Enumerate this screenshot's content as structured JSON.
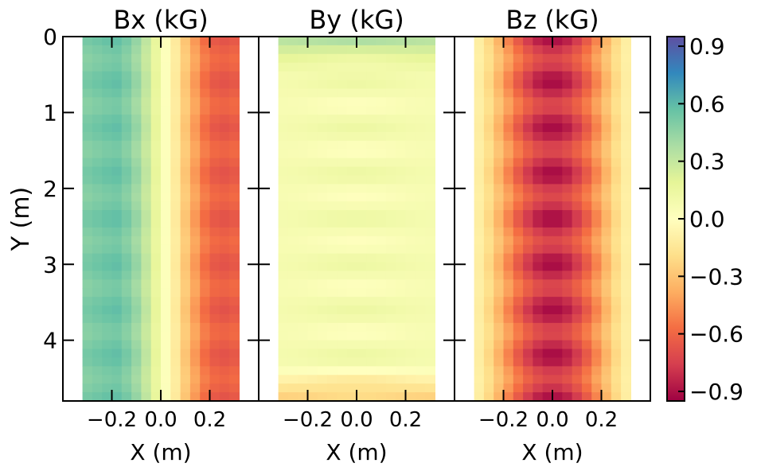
{
  "chart_data": {
    "type": "heatmap",
    "colormap": "Spectral",
    "colorbar": {
      "range": [
        -0.95,
        0.95
      ],
      "ticks": [
        0.9,
        0.6,
        0.3,
        0.0,
        -0.3,
        -0.6,
        -0.9
      ],
      "tick_labels": [
        "0.9",
        "0.6",
        "0.3",
        "0.0",
        "−0.3",
        "−0.6",
        "−0.9"
      ]
    },
    "ylabel": "Y (m)",
    "y_range": [
      0,
      4.8
    ],
    "y_ticks": [
      0,
      1,
      2,
      3,
      4
    ],
    "y_tick_labels": [
      "0",
      "1",
      "2",
      "3",
      "4"
    ],
    "y_inverted": true,
    "x_range": [
      -0.4,
      0.4
    ],
    "data_x_range": [
      -0.32,
      0.32
    ],
    "x_ticks": [
      -0.2,
      0.0,
      0.2
    ],
    "x_tick_labels": [
      "−0.2",
      "0.0",
      "0.2"
    ],
    "xlabel": "X (m)",
    "grid": false,
    "panels": [
      {
        "title": "Bx (kG)",
        "x_profile": [
          0.5,
          0.52,
          0.54,
          0.55,
          0.5,
          0.42,
          0.3,
          0.16,
          0.02,
          -0.12,
          -0.28,
          -0.42,
          -0.55,
          -0.62,
          -0.64,
          -0.62
        ],
        "y_modulation": 0.06,
        "period": 0.6
      },
      {
        "title": "By (kG)",
        "base": 0.07,
        "ripple": 0.06,
        "period": 0.6,
        "end_top": 0.35,
        "end_bottom": -0.3
      },
      {
        "title": "Bz (kG)",
        "peak": -0.82,
        "ripple": 0.12,
        "period": 0.6,
        "edge_value": -0.05
      }
    ]
  }
}
